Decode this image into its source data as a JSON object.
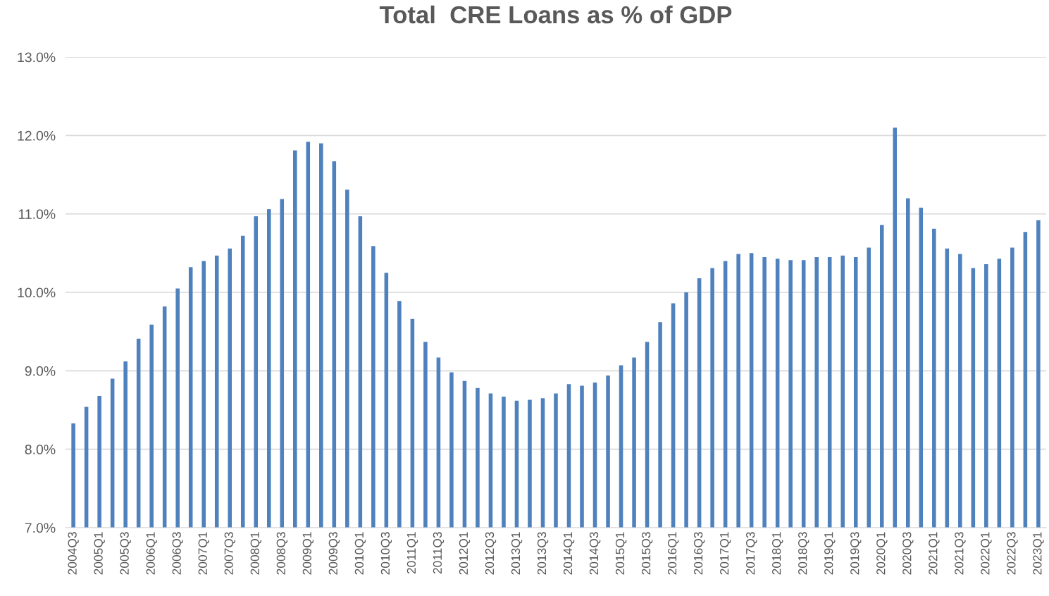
{
  "chart_data": {
    "type": "bar",
    "title": "Total  CRE Loans as % of GDP",
    "categories": [
      "2004Q3",
      null,
      "2005Q1",
      null,
      "2005Q3",
      null,
      "2006Q1",
      null,
      "2006Q3",
      null,
      "2007Q1",
      null,
      "2007Q3",
      null,
      "2008Q1",
      null,
      "2008Q3",
      null,
      "2009Q1",
      null,
      "2009Q3",
      null,
      "2010Q1",
      null,
      "2010Q3",
      null,
      "2011Q1",
      null,
      "2011Q3",
      null,
      "2012Q1",
      null,
      "2012Q3",
      null,
      "2013Q1",
      null,
      "2013Q3",
      null,
      "2014Q1",
      null,
      "2014Q3",
      null,
      "2015Q1",
      null,
      "2015Q3",
      null,
      "2016Q1",
      null,
      "2016Q3",
      null,
      "2017Q1",
      null,
      "2017Q3",
      null,
      "2018Q1",
      null,
      "2018Q3",
      null,
      "2019Q1",
      null,
      "2019Q3",
      null,
      "2020Q1",
      null,
      "2020Q3",
      null,
      "2021Q1",
      null,
      "2021Q3",
      null,
      "2022Q1",
      null,
      "2022Q3",
      null,
      "2023Q1"
    ],
    "values": [
      8.33,
      8.54,
      8.68,
      8.9,
      9.12,
      9.41,
      9.59,
      9.82,
      10.05,
      10.32,
      10.4,
      10.47,
      10.56,
      10.72,
      10.97,
      11.06,
      11.19,
      11.81,
      11.92,
      11.9,
      11.67,
      11.31,
      10.97,
      10.59,
      10.25,
      9.89,
      9.66,
      9.37,
      9.17,
      8.98,
      8.87,
      8.78,
      8.71,
      8.67,
      8.62,
      8.63,
      8.65,
      8.71,
      8.83,
      8.81,
      8.85,
      8.94,
      9.07,
      9.17,
      9.37,
      9.62,
      9.86,
      10.0,
      10.18,
      10.31,
      10.4,
      10.49,
      10.5,
      10.45,
      10.43,
      10.41,
      10.41,
      10.45,
      10.45,
      10.47,
      10.45,
      10.57,
      10.86,
      12.1,
      11.2,
      11.08,
      10.81,
      10.56,
      10.49,
      10.31,
      10.36,
      10.43,
      10.57,
      10.77,
      10.92
    ],
    "color": "#4f81bd",
    "ylim": [
      7,
      13
    ],
    "yticks": [
      {
        "value": 7,
        "label": "7.0%"
      },
      {
        "value": 8,
        "label": "8.0%"
      },
      {
        "value": 9,
        "label": "9.0%"
      },
      {
        "value": 10,
        "label": "10.0%"
      },
      {
        "value": 11,
        "label": "11.0%"
      },
      {
        "value": 12,
        "label": "12.0%"
      },
      {
        "value": 13,
        "label": "13.0%"
      }
    ],
    "grid": "y"
  }
}
